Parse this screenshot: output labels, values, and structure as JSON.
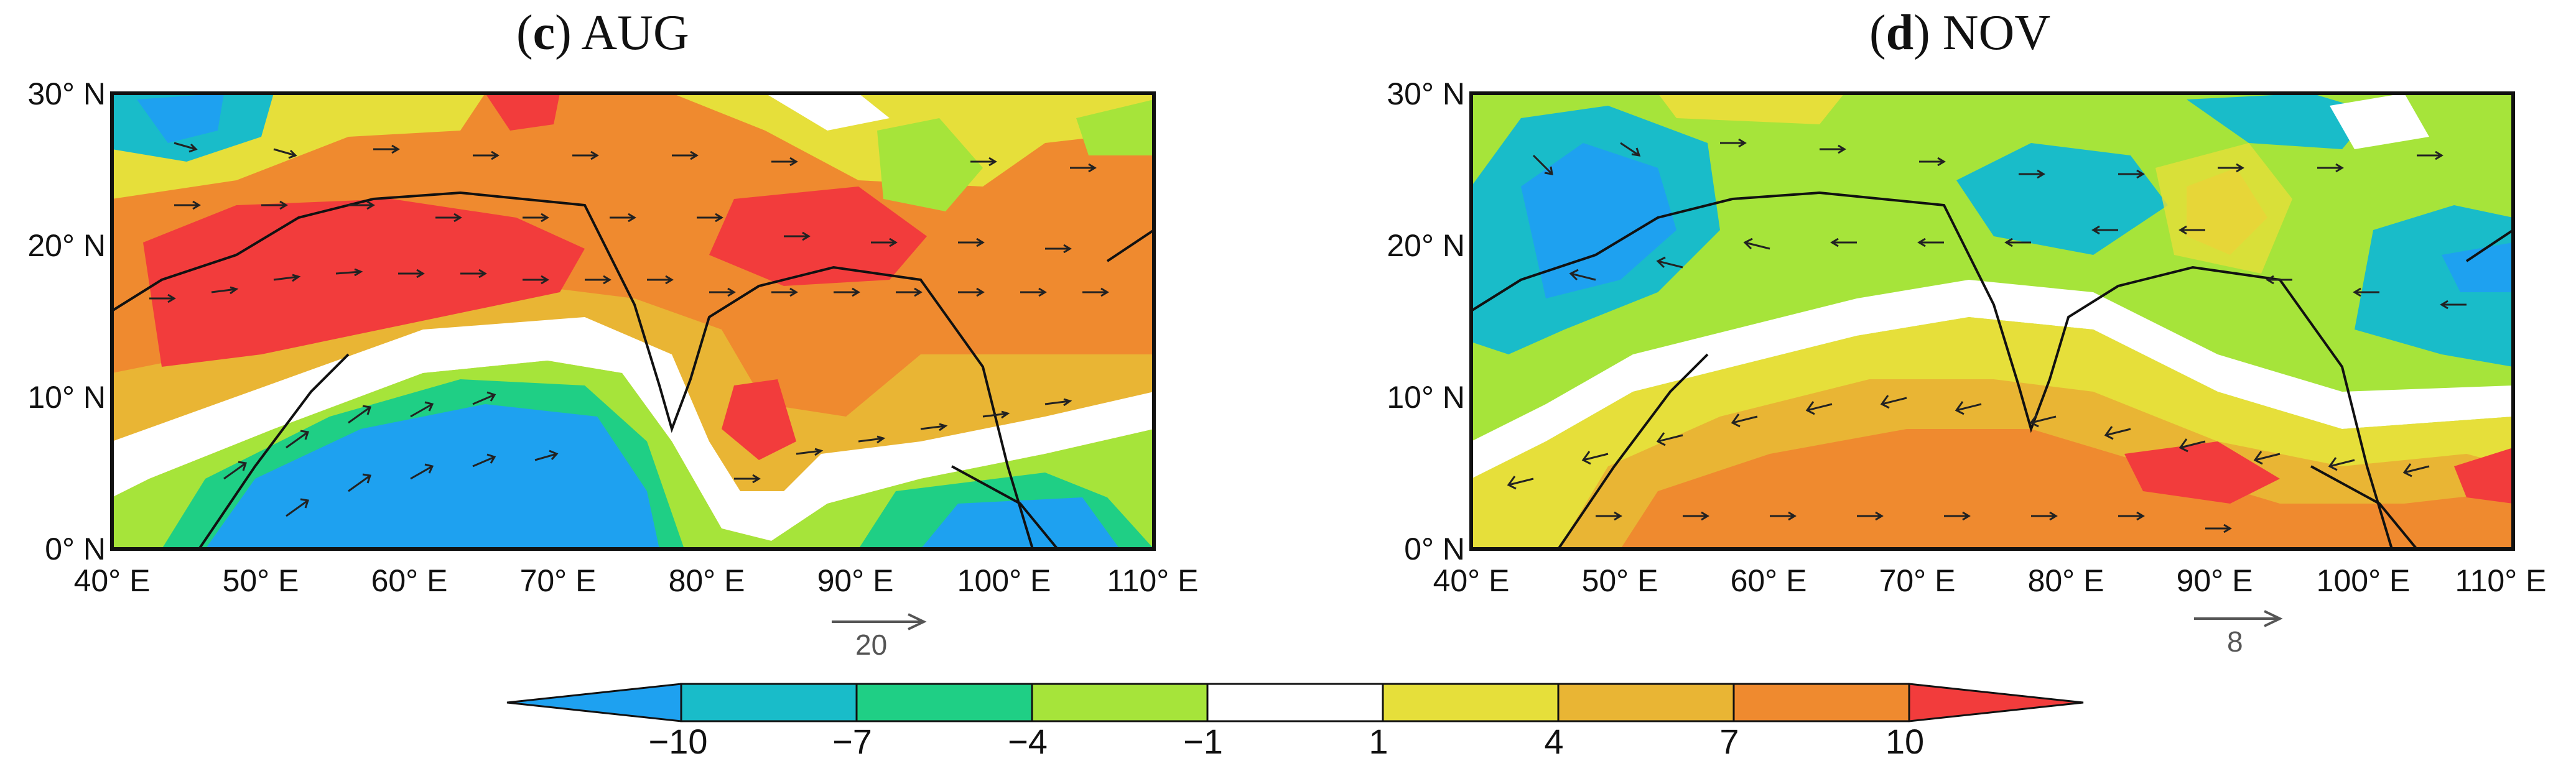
{
  "panels": [
    {
      "id": "c",
      "letter": "c",
      "month": "AUG",
      "vector_scale_label": "20",
      "y_ticks": [
        "30° N",
        "20° N",
        "10° N",
        "0° N"
      ],
      "x_ticks": [
        "40° E",
        "50° E",
        "60° E",
        "70° E",
        "80° E",
        "90° E",
        "100° E",
        "110° E"
      ]
    },
    {
      "id": "d",
      "letter": "d",
      "month": "NOV",
      "vector_scale_label": "8",
      "y_ticks": [
        "30° N",
        "20° N",
        "10° N",
        "0° N"
      ],
      "x_ticks": [
        "40° E",
        "50° E",
        "60° E",
        "70° E",
        "80° E",
        "90° E",
        "100° E",
        "110° E"
      ]
    }
  ],
  "colorbar": {
    "tick_labels": [
      "−10",
      "−7",
      "−4",
      "−1",
      "1",
      "4",
      "7",
      "10"
    ],
    "colors": [
      "#1ea1f0",
      "#19bcc9",
      "#1fcf85",
      "#a6e43a",
      "#ffffff",
      "#e6df3a",
      "#e9b534",
      "#ef8a2f",
      "#f23c3c"
    ]
  }
}
